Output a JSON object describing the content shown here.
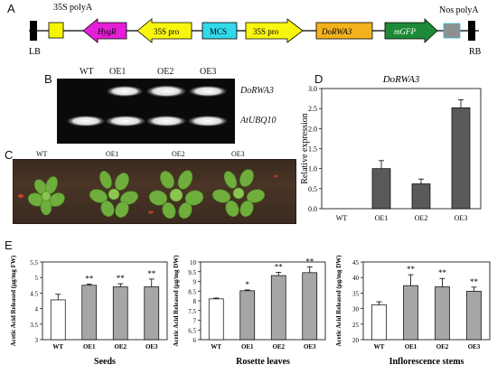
{
  "panel_letters": {
    "a": "A",
    "b": "B",
    "c": "C",
    "d": "D",
    "e": "E"
  },
  "construct": {
    "labels": {
      "polya_35s": "35S polyA",
      "nos_polya": "Nos polyA",
      "lb": "LB",
      "rb": "RB",
      "hygr": "HygR",
      "pro1": "35S pro",
      "mcs": "MCS",
      "pro2": "35S pro",
      "gene": "DoRWA3",
      "mgfp": "mGFP"
    },
    "colors": {
      "terminator": "#f5f500",
      "hygr": "#e51fd8",
      "promoter": "#f8f50f",
      "mcs": "#33d9e8",
      "gene": "#f2b21c",
      "mgfp": "#1e8a37",
      "nos": "#8f8f8f",
      "border": "#000000"
    }
  },
  "gel": {
    "lanes": [
      "WT",
      "OE1",
      "OE2",
      "OE3"
    ],
    "bands": [
      "DoRWA3",
      "AtUBQ10"
    ]
  },
  "plants": {
    "labels": [
      "WT",
      "OE1",
      "OE2",
      "OE3"
    ]
  },
  "chart_data": [
    {
      "type": "bar",
      "title": "DoRWA3",
      "ylabel": "Relative expression",
      "categories": [
        "WT",
        "OE1",
        "OE2",
        "OE3"
      ],
      "values": [
        0.0,
        1.0,
        0.62,
        2.52
      ],
      "errors": [
        0.0,
        0.2,
        0.12,
        0.2
      ],
      "ylim": [
        0,
        3.0
      ],
      "yticks": [
        "0.0",
        "0.5",
        "1.0",
        "1.5",
        "2.0",
        "2.5",
        "3.0"
      ],
      "bar_color": "#595959"
    },
    {
      "type": "bar",
      "title": "Seeds",
      "ylabel": "Acetic Acid Released (µg/mg FW)",
      "categories": [
        "WT",
        "OE1",
        "OE2",
        "OE3"
      ],
      "values": [
        4.28,
        4.75,
        4.7,
        4.7
      ],
      "errors": [
        0.18,
        0.04,
        0.1,
        0.25
      ],
      "significance": [
        "",
        "**",
        "**",
        "**"
      ],
      "ylim": [
        3,
        5.5
      ],
      "yticks": [
        "3",
        "3.5",
        "4",
        "4.5",
        "5",
        "5.5"
      ]
    },
    {
      "type": "bar",
      "title": "Rosette leaves",
      "ylabel": "Acetic Acid Released (µg/mg DW)",
      "categories": [
        "WT",
        "OE1",
        "OE2",
        "OE3"
      ],
      "values": [
        8.1,
        8.52,
        9.3,
        9.45
      ],
      "errors": [
        0.04,
        0.04,
        0.17,
        0.3
      ],
      "significance": [
        "",
        "*",
        "**",
        "**"
      ],
      "ylim": [
        6,
        10
      ],
      "yticks": [
        "6",
        "6.5",
        "7",
        "7.5",
        "8",
        "8.5",
        "9",
        "9.5",
        "10"
      ]
    },
    {
      "type": "bar",
      "title": "Inflorescence stems",
      "ylabel": "Acetic Acid Released (µg/mg DW)",
      "categories": [
        "WT",
        "OE1",
        "OE2",
        "OE3"
      ],
      "values": [
        31.2,
        37.4,
        37.0,
        35.6
      ],
      "errors": [
        1.0,
        3.5,
        2.7,
        1.3
      ],
      "significance": [
        "",
        "**",
        "**",
        "**"
      ],
      "ylim": [
        20,
        45
      ],
      "yticks": [
        "20",
        "25",
        "30",
        "35",
        "40",
        "45"
      ]
    }
  ]
}
